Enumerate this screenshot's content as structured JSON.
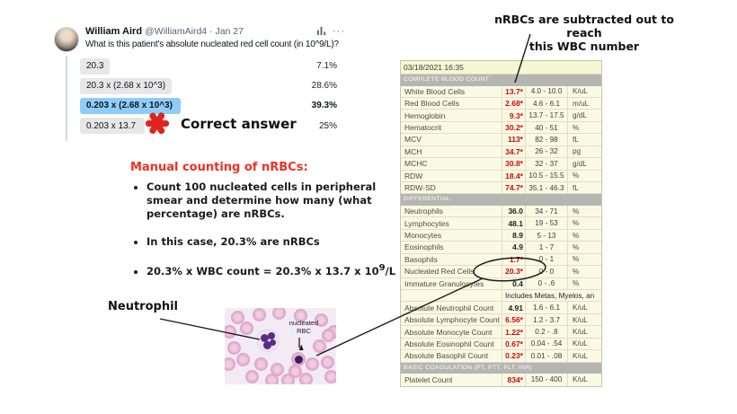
{
  "tweet": {
    "author": "William Aird",
    "meta": "@WilliamAird4 · Jan 27",
    "question": "What is this patient's absolute nucleated red cell count (in 10^9/L)?",
    "more_glyph": "···",
    "poll": {
      "options": [
        {
          "label": "20.3",
          "pct": "7.1%",
          "pct_value": 7.1,
          "winner": false
        },
        {
          "label": "20.3 x (2.68 x 10^3)",
          "pct": "28.6%",
          "pct_value": 28.6,
          "winner": false
        },
        {
          "label": "0.203 x (2.68 x 10^3)",
          "pct": "39.3%",
          "pct_value": 39.3,
          "winner": true
        },
        {
          "label": "0.203 x 13.7",
          "pct": "25%",
          "pct_value": 25,
          "winner": false
        }
      ]
    }
  },
  "annotations": {
    "correct_answer": "Correct answer",
    "wbc_note_line1": "nRBCs are subtracted out to reach",
    "wbc_note_line2": "this WBC number",
    "neutrophil_label": "Neutrophil",
    "smear_label_line1": "nucleated",
    "smear_label_line2": "RBC"
  },
  "manual_counting": {
    "title": "Manual counting of nRBCs:",
    "title_color": "#ee3124",
    "bullets": [
      "Count 100 nucleated cells in peripheral smear and determine how many (what percentage) are nRBCs.",
      "In this case, 20.3% are nRBCs"
    ],
    "formula": {
      "prefix": "20.3% x WBC count = 20.3% x 13.7 x 10",
      "sup": "9",
      "suffix": "/L"
    }
  },
  "lab_table": {
    "timestamp": "03/18/2021 16:35",
    "colors": {
      "abnormal_value": "#d40505",
      "section_bg": "#b5b5b2",
      "table_bg": "#fafae4",
      "winner_bar": "#8ecdf8"
    },
    "sections": [
      {
        "header": "COMPLETE BLOOD COUNT",
        "rows": [
          {
            "label": "White Blood Cells",
            "value": "13.7*",
            "abnormal": true,
            "range": "4.0 - 10.0",
            "units": "K/uL"
          },
          {
            "label": "Red Blood Cells",
            "value": "2.68*",
            "abnormal": true,
            "range": "4.6 - 6.1",
            "units": "m/uL"
          },
          {
            "label": "Hemoglobin",
            "value": "9.3*",
            "abnormal": true,
            "range": "13.7 - 17.5",
            "units": "g/dL"
          },
          {
            "label": "Hematocrit",
            "value": "30.2*",
            "abnormal": true,
            "range": "40 - 51",
            "units": "%"
          },
          {
            "label": "MCV",
            "value": "113*",
            "abnormal": true,
            "range": "82 - 98",
            "units": "fL"
          },
          {
            "label": "MCH",
            "value": "34.7*",
            "abnormal": true,
            "range": "26 - 32",
            "units": "pg"
          },
          {
            "label": "MCHC",
            "value": "30.8*",
            "abnormal": true,
            "range": "32 - 37",
            "units": "g/dL"
          },
          {
            "label": "RDW",
            "value": "18.4*",
            "abnormal": true,
            "range": "10.5 - 15.5",
            "units": "%"
          },
          {
            "label": "RDW-SD",
            "value": "74.7*",
            "abnormal": true,
            "range": "35.1 - 46.3",
            "units": "fL"
          }
        ]
      },
      {
        "header": "DIFFERENTIAL",
        "rows": [
          {
            "label": "Neutrophils",
            "value": "36.0",
            "abnormal": false,
            "range": "34 - 71",
            "units": "%"
          },
          {
            "label": "Lymphocytes",
            "value": "48.1",
            "abnormal": false,
            "range": "19 - 53",
            "units": "%"
          },
          {
            "label": "Monocytes",
            "value": "8.9",
            "abnormal": false,
            "range": "5 - 13",
            "units": "%"
          },
          {
            "label": "Eosinophils",
            "value": "4.9",
            "abnormal": false,
            "range": "1 - 7",
            "units": "%"
          },
          {
            "label": "Basophils",
            "value": "1.7*",
            "abnormal": true,
            "range": "0 - 1",
            "units": "%"
          },
          {
            "label": "Nucleated Red Cells",
            "value": "20.3*",
            "abnormal": true,
            "range": "0 - 0",
            "units": "%"
          },
          {
            "label": "Immature Granulocytes",
            "value": "0.4",
            "abnormal": false,
            "range": "0 - .6",
            "units": "%"
          },
          {
            "note": "Includes Metas, Myelos, an"
          },
          {
            "label": "Absolute Neutrophil Count",
            "value": "4.91",
            "abnormal": false,
            "range": "1.6 - 6.1",
            "units": "K/uL"
          },
          {
            "label": "Absolute Lymphocyte Count",
            "value": "6.56*",
            "abnormal": true,
            "range": "1.2 - 3.7",
            "units": "K/uL"
          },
          {
            "label": "Absolute Monocyte Count",
            "value": "1.22*",
            "abnormal": true,
            "range": "0.2 - .8",
            "units": "K/uL"
          },
          {
            "label": "Absolute Eosinophil Count",
            "value": "0.67*",
            "abnormal": true,
            "range": "0.04 - .54",
            "units": "K/uL"
          },
          {
            "label": "Absolute Basophil Count",
            "value": "0.23*",
            "abnormal": true,
            "range": "0.01 - .08",
            "units": "K/uL"
          }
        ]
      },
      {
        "header": "BASIC COAGULATION (PT, PTT, PLT, INR)",
        "rows": [
          {
            "label": "Platelet Count",
            "value": "834*",
            "abnormal": true,
            "range": "150 - 400",
            "units": "K/uL"
          }
        ]
      }
    ]
  }
}
